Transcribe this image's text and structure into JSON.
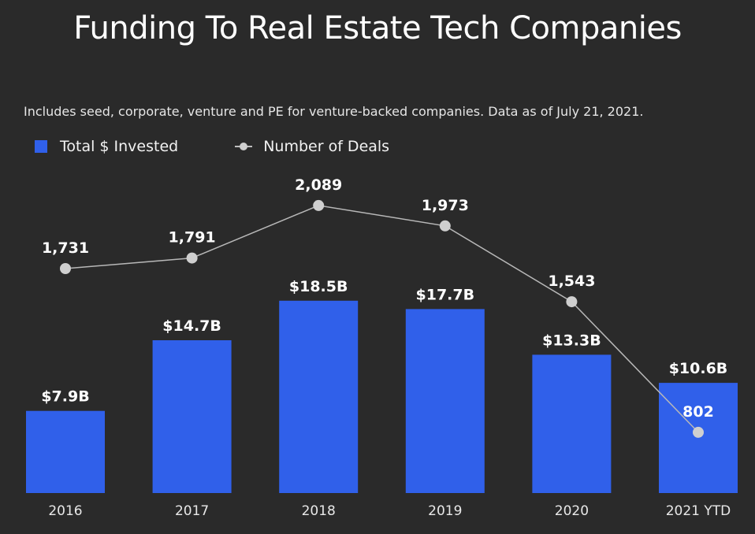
{
  "title": "Funding To Real Estate Tech Companies",
  "subtitle": "Includes seed, corporate, venture and PE for venture-backed companies. Data as of July 21, 2021.",
  "legend": {
    "bar_label": "Total $ Invested",
    "line_label": "Number of Deals"
  },
  "colors": {
    "background": "#2a2a2a",
    "bar": "#3060ea",
    "line": "#b8b8b8",
    "marker": "#cfcfcf",
    "text": "#ffffff"
  },
  "chart_data": {
    "type": "bar",
    "title": "Funding To Real Estate Tech Companies",
    "subtitle": "Includes seed, corporate, venture and PE for venture-backed companies. Data as of July 21, 2021.",
    "categories": [
      "2016",
      "2017",
      "2018",
      "2019",
      "2020",
      "2021 YTD"
    ],
    "series": [
      {
        "name": "Total $ Invested",
        "type": "bar",
        "unit": "$B",
        "values": [
          7.9,
          14.7,
          18.5,
          17.7,
          13.3,
          10.6
        ],
        "labels": [
          "$7.9B",
          "$14.7B",
          "$18.5B",
          "$17.7B",
          "$13.3B",
          "$10.6B"
        ]
      },
      {
        "name": "Number of Deals",
        "type": "line",
        "values": [
          1731,
          1791,
          2089,
          1973,
          1543,
          802
        ],
        "labels": [
          "1,731",
          "1,791",
          "2,089",
          "1,973",
          "1,543",
          "802"
        ]
      }
    ],
    "xlabel": "",
    "ylabel": "",
    "legend_position": "top-left",
    "grid": false
  }
}
